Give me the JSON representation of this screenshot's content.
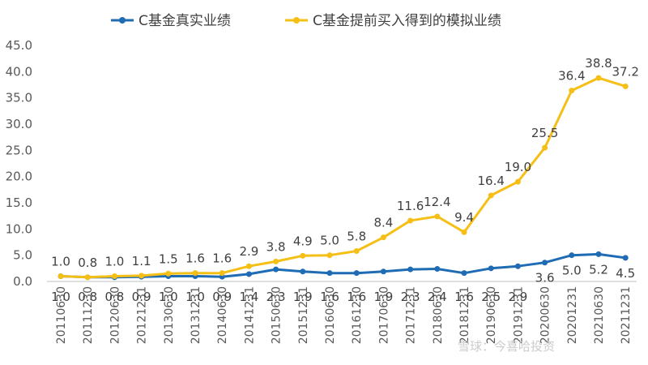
{
  "chart_data": {
    "type": "line",
    "title": "",
    "xlabel": "",
    "ylabel": "",
    "ylim": [
      0,
      45
    ],
    "yticks": [
      "0.0",
      "5.0",
      "10.0",
      "15.0",
      "20.0",
      "25.0",
      "30.0",
      "35.0",
      "40.0",
      "45.0"
    ],
    "grid": false,
    "legend_position": "top",
    "categories": [
      "20110630",
      "20111230",
      "20120630",
      "20121231",
      "20130630",
      "20131231",
      "20140630",
      "20141231",
      "20150630",
      "20151231",
      "20160630",
      "20161230",
      "20170630",
      "20171231",
      "20180630",
      "20181231",
      "20190630",
      "20191231",
      "20200630",
      "20201231",
      "20210630",
      "20211231"
    ],
    "series": [
      {
        "name": "C基金真实业绩",
        "color": "#1f6cb5",
        "values": [
          1.0,
          0.8,
          0.8,
          0.9,
          1.0,
          1.0,
          0.9,
          1.4,
          2.3,
          1.9,
          1.6,
          1.6,
          1.9,
          2.3,
          2.4,
          1.6,
          2.5,
          2.9,
          3.6,
          5.0,
          5.2,
          4.5
        ],
        "labels": [
          "1.0",
          "0.8",
          "0.8",
          "0.9",
          "1.0",
          "1.0",
          "0.9",
          "1.4",
          "2.3",
          "1.9",
          "1.6",
          "1.6",
          "1.9",
          "2.3",
          "2.4",
          "1.6",
          "2.5",
          "2.9",
          "3.6",
          "5.0",
          "5.2",
          "4.5"
        ]
      },
      {
        "name": "C基金提前买入得到的模拟业绩",
        "color": "#f5bf16",
        "values": [
          1.0,
          0.8,
          1.0,
          1.1,
          1.5,
          1.6,
          1.6,
          2.9,
          3.8,
          4.9,
          5.0,
          5.8,
          8.4,
          11.6,
          12.4,
          9.4,
          16.4,
          19.0,
          25.5,
          36.4,
          38.8,
          37.2
        ],
        "labels": [
          "1.0",
          "0.8",
          "1.0",
          "1.1",
          "1.5",
          "1.6",
          "1.6",
          "2.9",
          "3.8",
          "4.9",
          "5.0",
          "5.8",
          "8.4",
          "11.6",
          "12.4",
          "9.4",
          "16.4",
          "19.0",
          "25.5",
          "36.4",
          "38.8",
          "37.2"
        ]
      }
    ]
  },
  "watermark": "雪球：今喜哈投资"
}
